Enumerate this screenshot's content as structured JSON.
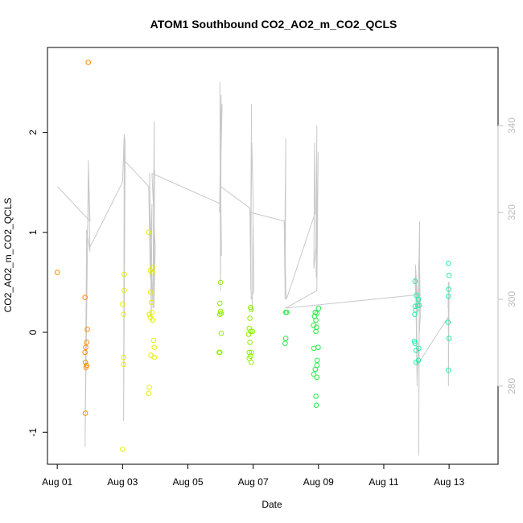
{
  "chart_data": {
    "type": "scatter",
    "title": "ATOM1 Southbound CO2_AO2_m_CO2_QCLS",
    "xlabel": "Date",
    "ylabel": "CO2_AO2_m_CO2_QCLS",
    "x_unit": "days since Aug 01",
    "xlim": [
      -0.3,
      13.5
    ],
    "ylim": [
      -1.32,
      2.85
    ],
    "x_ticks": [
      {
        "value": 0,
        "label": "Aug 01"
      },
      {
        "value": 2,
        "label": "Aug 03"
      },
      {
        "value": 4,
        "label": "Aug 05"
      },
      {
        "value": 6,
        "label": "Aug 07"
      },
      {
        "value": 8,
        "label": "Aug 09"
      },
      {
        "value": 10,
        "label": "Aug 11"
      },
      {
        "value": 12,
        "label": "Aug 13"
      }
    ],
    "y_ticks": [
      {
        "value": -1,
        "label": "-1"
      },
      {
        "value": 0,
        "label": "0"
      },
      {
        "value": 1,
        "label": "1"
      },
      {
        "value": 2,
        "label": "2"
      }
    ],
    "y2lim": [
      262,
      358
    ],
    "y2_ticks": [
      {
        "value": 280,
        "label": "280"
      },
      {
        "value": 300,
        "label": "300"
      },
      {
        "value": 320,
        "label": "320"
      },
      {
        "value": 340,
        "label": "340"
      }
    ],
    "grid": false,
    "legend": "none",
    "line_color": "#c8c8c8",
    "series": [
      {
        "color": "#ff8c00",
        "points": [
          [
            0.0,
            0.6
          ],
          [
            0.85,
            0.35
          ],
          [
            0.95,
            2.7
          ],
          [
            0.92,
            0.03
          ],
          [
            0.9,
            -0.1
          ],
          [
            0.87,
            -0.15
          ],
          [
            0.85,
            -0.2
          ],
          [
            0.86,
            -0.3
          ],
          [
            0.9,
            -0.33
          ],
          [
            0.88,
            -0.35
          ],
          [
            0.86,
            -0.81
          ]
        ]
      },
      {
        "color": "#e6f000",
        "points": [
          [
            2.05,
            0.58
          ],
          [
            2.05,
            0.42
          ],
          [
            2.0,
            0.28
          ],
          [
            2.03,
            0.18
          ],
          [
            2.03,
            -0.25
          ],
          [
            2.03,
            -0.32
          ],
          [
            2.0,
            -1.17
          ],
          [
            2.8,
            1.0
          ],
          [
            2.85,
            0.62
          ],
          [
            2.9,
            0.6
          ],
          [
            2.92,
            0.65
          ],
          [
            2.86,
            0.4
          ],
          [
            2.88,
            0.3
          ],
          [
            2.82,
            0.18
          ],
          [
            2.85,
            0.15
          ],
          [
            2.9,
            0.2
          ],
          [
            2.92,
            0.12
          ],
          [
            2.95,
            -0.08
          ],
          [
            2.97,
            -0.15
          ],
          [
            2.87,
            -0.23
          ],
          [
            2.97,
            -0.25
          ],
          [
            2.82,
            -0.55
          ],
          [
            2.8,
            -0.61
          ]
        ]
      },
      {
        "color": "#90f000",
        "points": [
          [
            5.0,
            0.5
          ],
          [
            4.98,
            0.29
          ],
          [
            5.0,
            0.21
          ],
          [
            5.02,
            0.19
          ],
          [
            4.98,
            0.18
          ],
          [
            5.02,
            -0.01
          ],
          [
            4.96,
            -0.2
          ],
          [
            4.98,
            -0.2
          ],
          [
            5.92,
            0.25
          ],
          [
            5.94,
            0.23
          ],
          [
            5.9,
            0.14
          ],
          [
            5.88,
            0.04
          ],
          [
            5.92,
            0.01
          ],
          [
            5.98,
            0.01
          ],
          [
            5.86,
            -0.02
          ],
          [
            5.9,
            -0.1
          ],
          [
            5.88,
            -0.2
          ],
          [
            5.95,
            -0.2
          ],
          [
            5.92,
            -0.24
          ],
          [
            5.88,
            -0.26
          ],
          [
            5.94,
            -0.3
          ]
        ]
      },
      {
        "color": "#22ee44",
        "points": [
          [
            7.0,
            0.2
          ],
          [
            7.03,
            0.2
          ],
          [
            7.0,
            -0.06
          ],
          [
            6.98,
            -0.11
          ],
          [
            7.9,
            0.2
          ],
          [
            7.95,
            0.19
          ],
          [
            8.0,
            0.24
          ],
          [
            7.88,
            0.16
          ],
          [
            7.92,
            0.12
          ],
          [
            7.85,
            0.07
          ],
          [
            7.94,
            0.05
          ],
          [
            7.92,
            0.01
          ],
          [
            7.86,
            -0.16
          ],
          [
            7.99,
            -0.15
          ],
          [
            7.96,
            -0.28
          ],
          [
            7.95,
            -0.33
          ],
          [
            7.9,
            -0.37
          ],
          [
            7.86,
            -0.42
          ],
          [
            7.95,
            -0.45
          ],
          [
            7.92,
            -0.64
          ],
          [
            7.93,
            -0.73
          ]
        ]
      },
      {
        "color": "#22eeaa",
        "points": [
          [
            10.96,
            0.51
          ],
          [
            11.0,
            0.37
          ],
          [
            11.06,
            0.33
          ],
          [
            10.96,
            0.26
          ],
          [
            11.04,
            0.27
          ],
          [
            11.09,
            0.27
          ],
          [
            10.98,
            0.22
          ],
          [
            10.95,
            0.18
          ],
          [
            10.94,
            -0.09
          ],
          [
            10.96,
            -0.11
          ],
          [
            11.07,
            -0.16
          ],
          [
            10.99,
            -0.18
          ],
          [
            11.06,
            -0.28
          ],
          [
            10.99,
            -0.3
          ],
          [
            11.98,
            0.69
          ],
          [
            12.0,
            0.57
          ],
          [
            11.99,
            0.43
          ],
          [
            11.98,
            0.36
          ],
          [
            11.97,
            0.1
          ],
          [
            12.0,
            -0.06
          ],
          [
            11.98,
            -0.38
          ]
        ]
      }
    ],
    "secondary_line": [
      [
        0.0,
        326
      ],
      [
        1.0,
        318
      ],
      [
        0.95,
        332
      ],
      [
        1.0,
        311
      ],
      [
        0.9,
        316
      ],
      [
        0.85,
        266
      ],
      [
        0.92,
        309
      ],
      [
        0.95,
        330
      ],
      [
        1.0,
        312
      ],
      [
        2.0,
        327
      ],
      [
        2.05,
        338
      ],
      [
        2.08,
        336
      ],
      [
        2.03,
        272
      ],
      [
        2.05,
        337
      ],
      [
        2.05,
        332
      ],
      [
        2.8,
        326
      ],
      [
        2.85,
        305
      ],
      [
        2.83,
        329
      ],
      [
        2.88,
        295
      ],
      [
        2.9,
        322
      ],
      [
        2.86,
        313
      ],
      [
        2.93,
        298
      ],
      [
        2.95,
        324
      ],
      [
        2.97,
        341
      ],
      [
        2.97,
        315
      ],
      [
        2.95,
        303
      ],
      [
        2.98,
        330
      ],
      [
        2.96,
        298
      ],
      [
        3.0,
        312
      ],
      [
        2.9,
        329
      ],
      [
        5.0,
        322
      ],
      [
        4.98,
        350
      ],
      [
        5.0,
        302
      ],
      [
        5.02,
        347
      ],
      [
        4.97,
        320
      ],
      [
        5.01,
        336
      ],
      [
        5.05,
        345
      ],
      [
        5.0,
        329
      ],
      [
        5.03,
        310
      ],
      [
        5.01,
        320
      ],
      [
        5.0,
        326
      ],
      [
        5.9,
        321
      ],
      [
        5.93,
        302
      ],
      [
        5.95,
        345
      ],
      [
        5.92,
        309
      ],
      [
        5.96,
        336
      ],
      [
        6.0,
        322
      ],
      [
        5.97,
        297
      ],
      [
        6.0,
        317
      ],
      [
        6.02,
        302
      ],
      [
        5.94,
        300
      ],
      [
        5.92,
        320
      ],
      [
        6.95,
        318
      ],
      [
        6.98,
        300
      ],
      [
        7.0,
        337
      ],
      [
        6.97,
        315
      ],
      [
        7.0,
        302
      ],
      [
        7.02,
        300
      ],
      [
        7.9,
        320
      ],
      [
        7.88,
        336
      ],
      [
        7.86,
        307
      ],
      [
        7.92,
        312
      ],
      [
        7.95,
        340
      ],
      [
        7.93,
        305
      ],
      [
        7.97,
        326
      ],
      [
        7.99,
        334
      ],
      [
        7.95,
        302
      ],
      [
        7.0,
        298
      ],
      [
        7.05,
        298
      ],
      [
        10.98,
        301
      ],
      [
        10.95,
        305
      ],
      [
        11.0,
        303
      ],
      [
        11.02,
        280
      ],
      [
        10.97,
        308
      ],
      [
        11.05,
        298
      ],
      [
        11.1,
        318
      ],
      [
        11.07,
        264
      ],
      [
        11.09,
        312
      ],
      [
        11.12,
        296
      ],
      [
        11.1,
        294
      ],
      [
        11.02,
        282
      ],
      [
        11.04,
        285
      ],
      [
        11.98,
        296
      ],
      [
        12.0,
        302
      ],
      [
        11.98,
        280
      ],
      [
        11.98,
        304
      ],
      [
        11.97,
        298
      ],
      [
        11.99,
        300
      ],
      [
        12.0,
        304
      ]
    ]
  }
}
